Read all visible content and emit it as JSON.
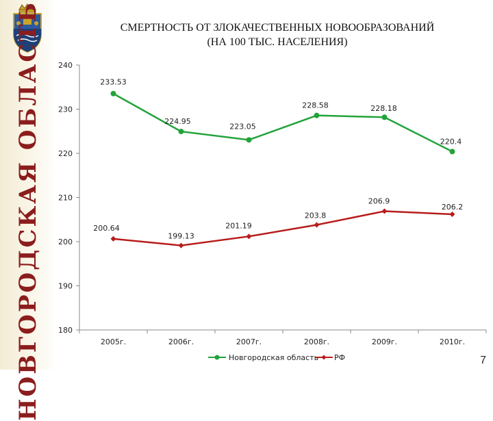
{
  "region_name": "НОВГОРОДСКАЯ ОБЛАСТЬ",
  "slide_number": "7",
  "colors": {
    "novgorod": "#22a33a",
    "rf": "#b81c1c",
    "region_name": "#8c1d1d"
  },
  "chart_data": {
    "type": "line",
    "title": "СМЕРТНОСТЬ ОТ ЗЛОКАЧЕСТВЕННЫХ НОВООБРАЗОВАНИЙ",
    "subtitle": "(НА 100 ТЫС. НАСЕЛЕНИЯ)",
    "categories": [
      "2005г.",
      "2006г.",
      "2007г.",
      "2008г.",
      "2009г.",
      "2010г."
    ],
    "ylim": [
      180,
      240
    ],
    "yticks": [
      "180",
      "190",
      "200",
      "210",
      "220",
      "230",
      "240"
    ],
    "grid": false,
    "legend_position": "bottom",
    "series": [
      {
        "name": "Новгородская область",
        "values": [
          233.53,
          224.95,
          223.05,
          228.58,
          228.18,
          220.4
        ],
        "labels": [
          "233.53",
          "224.95",
          "223.05",
          "228.58",
          "228.18",
          "220.4"
        ],
        "marker": "circle",
        "color": "#22a33a"
      },
      {
        "name": "РФ",
        "values": [
          200.64,
          199.13,
          201.19,
          203.8,
          206.9,
          206.2
        ],
        "labels": [
          "200.64",
          "199.13",
          "201.19",
          "203.8",
          "206.9",
          "206.2"
        ],
        "marker": "diamond",
        "color": "#b81c1c"
      }
    ]
  }
}
